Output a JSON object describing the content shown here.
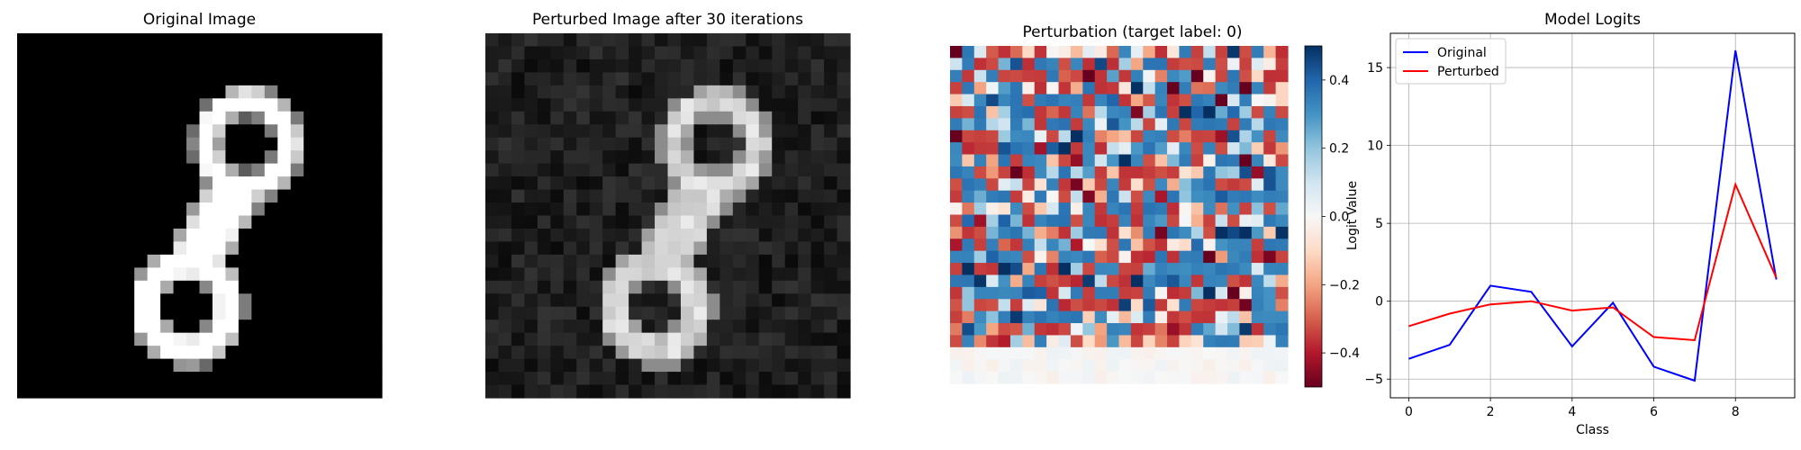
{
  "chart_data": [
    {
      "type": "heatmap",
      "title": "Original Image",
      "colormap": "gray",
      "grid_size": 28,
      "content": "handwritten digit 8 (MNIST)"
    },
    {
      "type": "heatmap",
      "title": "Perturbed Image after 30 iterations",
      "colormap": "gray",
      "grid_size": 28,
      "content": "digit 8 with added noise"
    },
    {
      "type": "heatmap",
      "title": "Perturbation (target label: 0)",
      "colormap": "RdBu",
      "grid_size": 28,
      "colorbar": {
        "range": [
          -0.5,
          0.5
        ],
        "ticks": [
          -0.4,
          -0.2,
          0.0,
          0.2,
          0.4
        ],
        "tick_labels": [
          "−0.4",
          "−0.2",
          "0.0",
          "0.2",
          "0.4"
        ]
      }
    },
    {
      "type": "line",
      "title": "Model Logits",
      "xlabel": "Class",
      "ylabel": "Logit Value",
      "x": [
        0,
        1,
        2,
        3,
        4,
        5,
        6,
        7,
        8,
        9
      ],
      "xlim": [
        -0.45,
        9.45
      ],
      "ylim": [
        -6.2,
        17.2
      ],
      "xticks": [
        0,
        2,
        4,
        6,
        8
      ],
      "yticks": [
        -5,
        0,
        5,
        10,
        15
      ],
      "grid": true,
      "legend": "top-left",
      "series": [
        {
          "name": "Original",
          "color": "#0000ff",
          "values": [
            -3.7,
            -2.8,
            1.0,
            0.6,
            -2.9,
            -0.1,
            -4.2,
            -5.1,
            16.1,
            1.4
          ]
        },
        {
          "name": "Perturbed",
          "color": "#ff0000",
          "values": [
            -1.6,
            -0.8,
            -0.2,
            0.0,
            -0.6,
            -0.4,
            -2.3,
            -2.5,
            7.5,
            1.5
          ]
        }
      ]
    }
  ]
}
